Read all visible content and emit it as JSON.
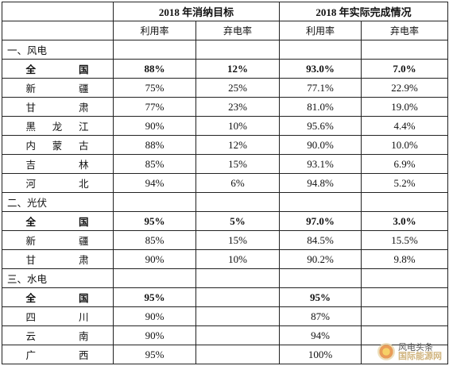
{
  "header": {
    "group1": "2018 年消纳目标",
    "group2": "2018 年实际完成情况",
    "utilization": "利用率",
    "curtailment": "弃电率"
  },
  "sections": [
    {
      "title": "一、风电",
      "rows": [
        {
          "name": "全 国",
          "bold": true,
          "target_util": "88%",
          "target_curt": "12%",
          "actual_util": "93.0%",
          "actual_curt": "7.0%"
        },
        {
          "name": "新 疆",
          "target_util": "75%",
          "target_curt": "25%",
          "actual_util": "77.1%",
          "actual_curt": "22.9%"
        },
        {
          "name": "甘 肃",
          "target_util": "77%",
          "target_curt": "23%",
          "actual_util": "81.0%",
          "actual_curt": "19.0%"
        },
        {
          "name": "黑龙江",
          "target_util": "90%",
          "target_curt": "10%",
          "actual_util": "95.6%",
          "actual_curt": "4.4%"
        },
        {
          "name": "内蒙古",
          "target_util": "88%",
          "target_curt": "12%",
          "actual_util": "90.0%",
          "actual_curt": "10.0%"
        },
        {
          "name": "吉 林",
          "target_util": "85%",
          "target_curt": "15%",
          "actual_util": "93.1%",
          "actual_curt": "6.9%"
        },
        {
          "name": "河 北",
          "target_util": "94%",
          "target_curt": "6%",
          "actual_util": "94.8%",
          "actual_curt": "5.2%"
        }
      ]
    },
    {
      "title": "二、光伏",
      "rows": [
        {
          "name": "全 国",
          "bold": true,
          "target_util": "95%",
          "target_curt": "5%",
          "actual_util": "97.0%",
          "actual_curt": "3.0%"
        },
        {
          "name": "新 疆",
          "target_util": "85%",
          "target_curt": "15%",
          "actual_util": "84.5%",
          "actual_curt": "15.5%"
        },
        {
          "name": "甘 肃",
          "target_util": "90%",
          "target_curt": "10%",
          "actual_util": "90.2%",
          "actual_curt": "9.8%"
        }
      ]
    },
    {
      "title": "三、水电",
      "rows": [
        {
          "name": "全 国",
          "bold": true,
          "target_util": "95%",
          "target_curt": "",
          "actual_util": "95%",
          "actual_curt": ""
        },
        {
          "name": "四 川",
          "target_util": "90%",
          "target_curt": "",
          "actual_util": "87%",
          "actual_curt": ""
        },
        {
          "name": "云 南",
          "target_util": "90%",
          "target_curt": "",
          "actual_util": "94%",
          "actual_curt": ""
        },
        {
          "name": "广 西",
          "target_util": "95%",
          "target_curt": "",
          "actual_util": "100%",
          "actual_curt": ""
        }
      ]
    }
  ],
  "watermark": {
    "line1": "风电头条",
    "line2": "国际能源网",
    "logo_icon": "sunflower-logo-icon"
  }
}
